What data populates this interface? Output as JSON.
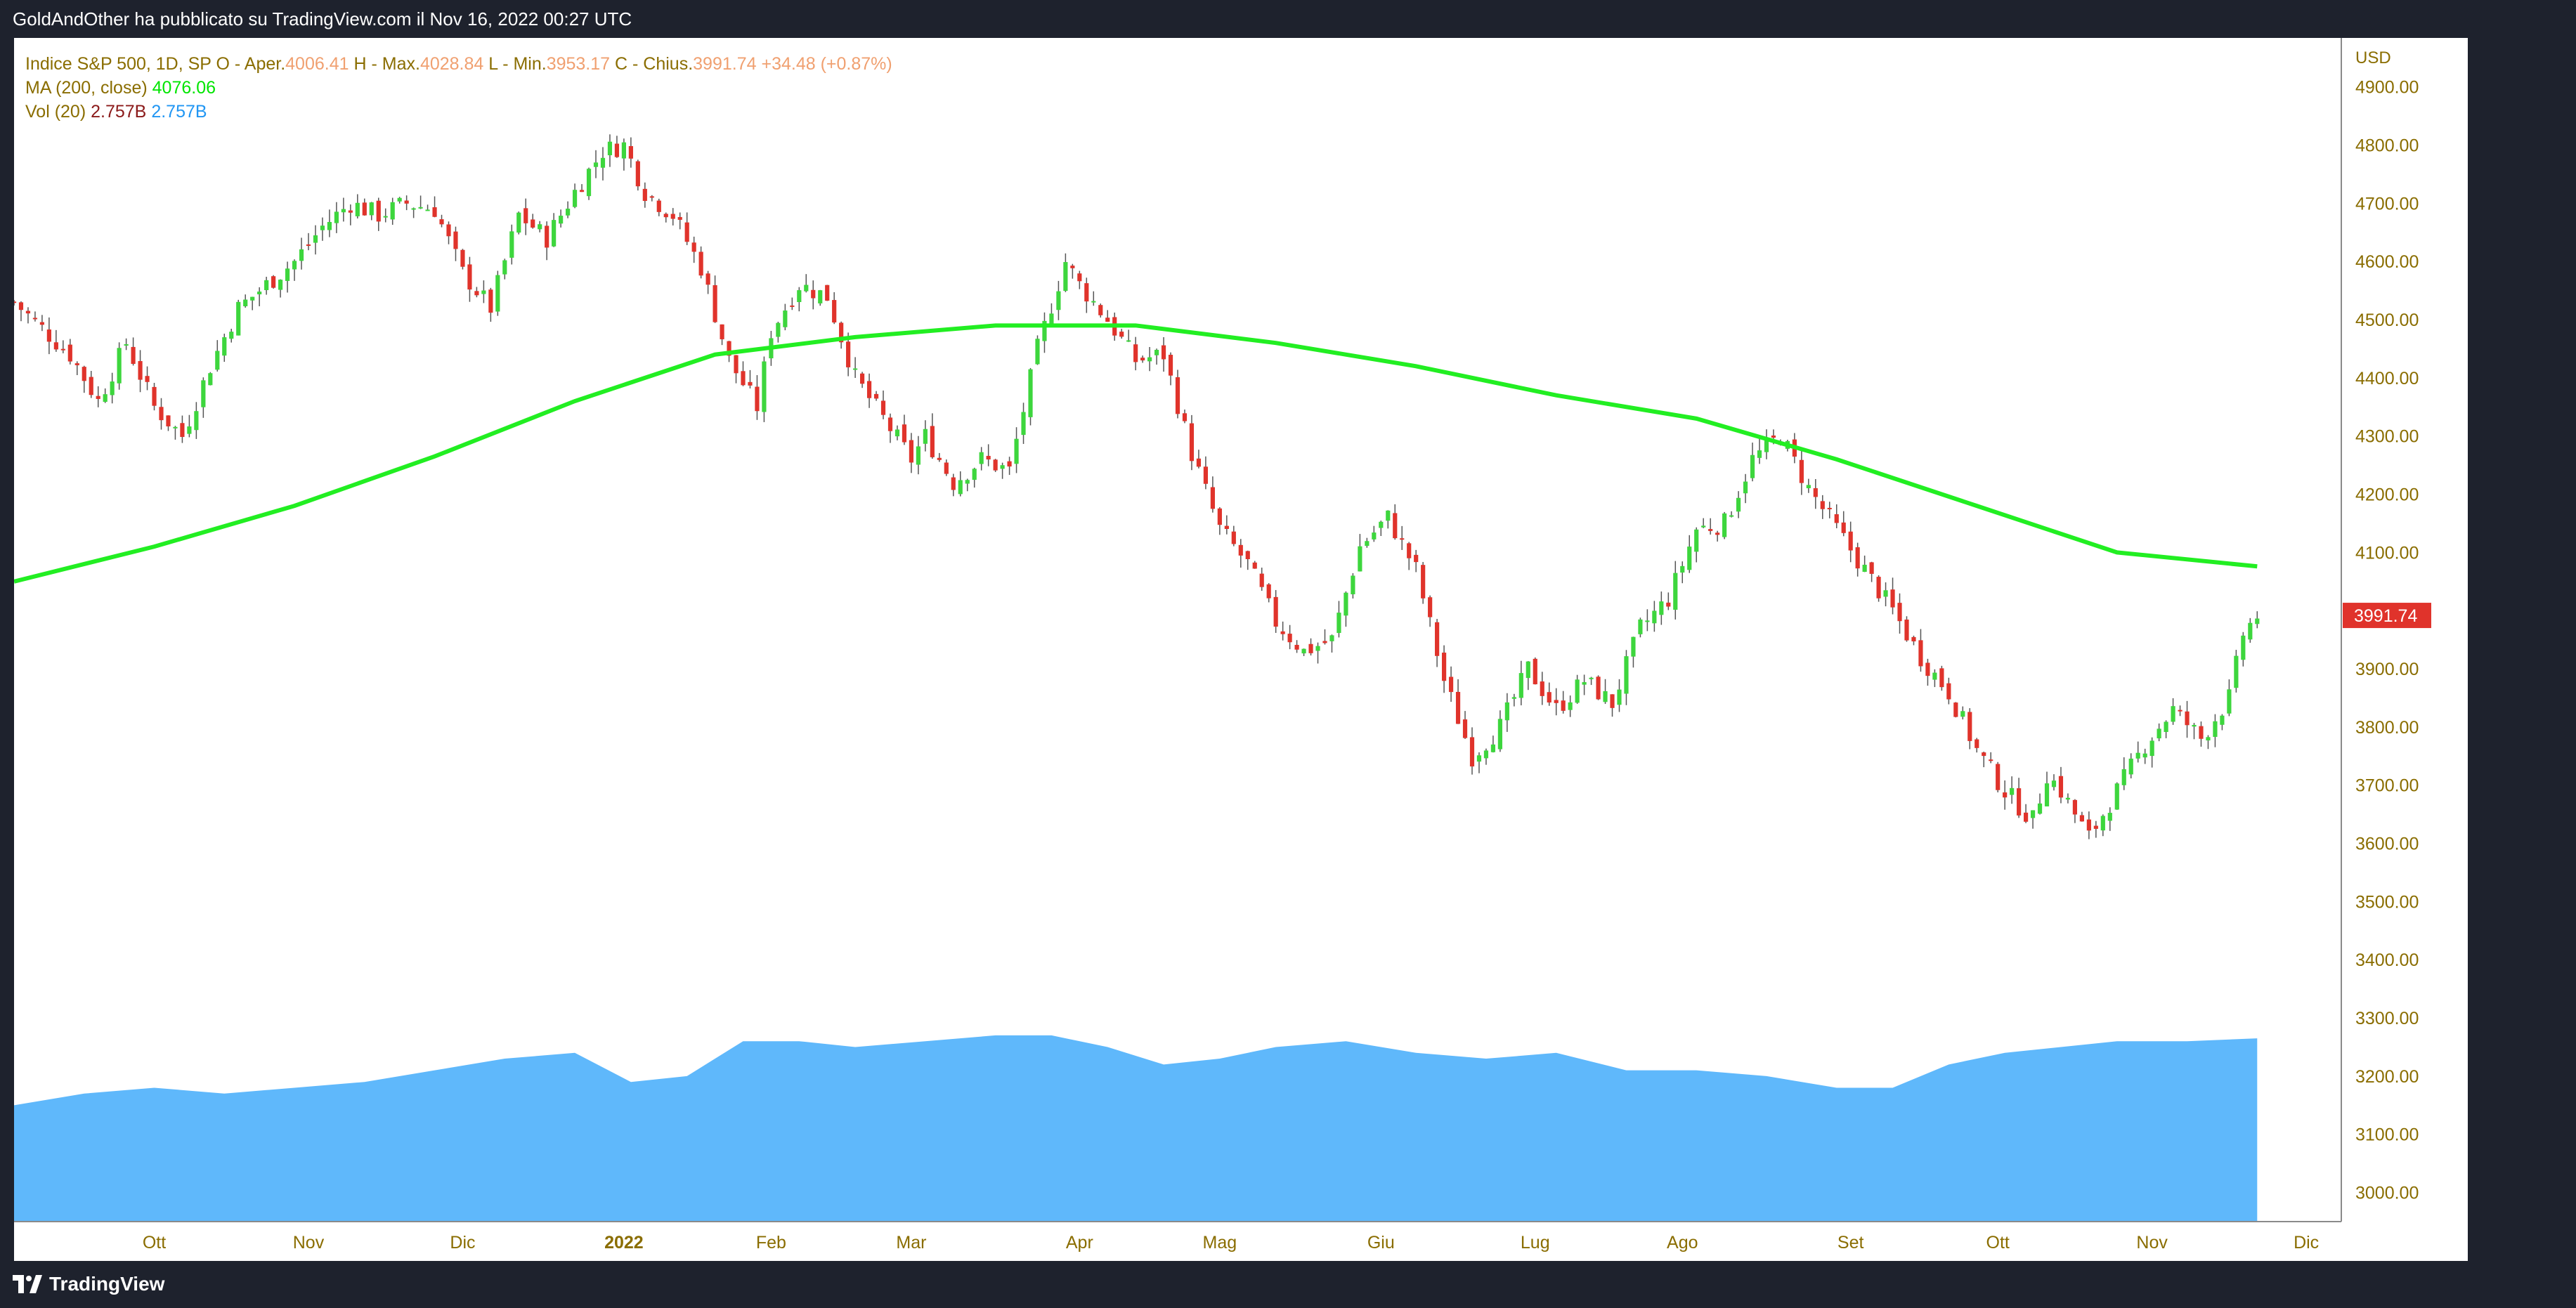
{
  "header": {
    "publish_line": "GoldAndOther ha pubblicato su TradingView.com il Nov 16, 2022 00:27 UTC"
  },
  "legend": {
    "symbol": "Indice S&P 500, 1D, SP",
    "open_label": "O - Aper.",
    "open_value": "4006.41",
    "high_label": "H - Max.",
    "high_value": "4028.84",
    "low_label": "L - Min.",
    "low_value": "3953.17",
    "close_label": "C - Chius.",
    "close_value": "3991.74",
    "change": "+34.48 (+0.87%)",
    "ma_label": "MA (200, close)",
    "ma_value": "4076.06",
    "vol_label": "Vol (20)",
    "vol_value_1": "2.757B",
    "vol_value_2": "2.757B"
  },
  "footer": {
    "brand": "TradingView"
  },
  "colors": {
    "up": "#3dd63d",
    "down": "#e0332b",
    "ma": "#22ee22",
    "volume": "#5fb8fb",
    "price_tag": "#e0332b",
    "axis_text": "#8a6d00"
  },
  "chart_data": {
    "type": "candlestick",
    "currency": "USD",
    "y_ticks": [
      3000,
      3100,
      3200,
      3300,
      3400,
      3500,
      3600,
      3700,
      3800,
      3900,
      4000,
      4100,
      4200,
      4300,
      4400,
      4500,
      4600,
      4700,
      4800,
      4900
    ],
    "ylim": [
      2950,
      4960
    ],
    "last_price_label": "3991.74",
    "x_labels": [
      {
        "text": "Ott",
        "idx": 20,
        "bold": false
      },
      {
        "text": "Nov",
        "idx": 42,
        "bold": false
      },
      {
        "text": "Dic",
        "idx": 64,
        "bold": false
      },
      {
        "text": "2022",
        "idx": 87,
        "bold": true
      },
      {
        "text": "Feb",
        "idx": 108,
        "bold": false
      },
      {
        "text": "Mar",
        "idx": 128,
        "bold": false
      },
      {
        "text": "Apr",
        "idx": 152,
        "bold": false
      },
      {
        "text": "Mag",
        "idx": 172,
        "bold": false
      },
      {
        "text": "Giu",
        "idx": 195,
        "bold": false
      },
      {
        "text": "Lug",
        "idx": 217,
        "bold": false
      },
      {
        "text": "Ago",
        "idx": 238,
        "bold": false
      },
      {
        "text": "Set",
        "idx": 262,
        "bold": false
      },
      {
        "text": "Ott",
        "idx": 283,
        "bold": false
      },
      {
        "text": "Nov",
        "idx": 305,
        "bold": false
      },
      {
        "text": "Dic",
        "idx": 327,
        "bold": false
      }
    ],
    "close_series": [
      [
        0,
        4530
      ],
      [
        8,
        4440
      ],
      [
        12,
        4360
      ],
      [
        16,
        4460
      ],
      [
        20,
        4350
      ],
      [
        24,
        4300
      ],
      [
        28,
        4420
      ],
      [
        32,
        4520
      ],
      [
        36,
        4560
      ],
      [
        40,
        4600
      ],
      [
        44,
        4660
      ],
      [
        48,
        4700
      ],
      [
        52,
        4680
      ],
      [
        56,
        4700
      ],
      [
        60,
        4690
      ],
      [
        64,
        4580
      ],
      [
        68,
        4520
      ],
      [
        72,
        4680
      ],
      [
        76,
        4640
      ],
      [
        80,
        4720
      ],
      [
        84,
        4790
      ],
      [
        87,
        4800
      ],
      [
        90,
        4720
      ],
      [
        94,
        4680
      ],
      [
        98,
        4590
      ],
      [
        102,
        4430
      ],
      [
        106,
        4350
      ],
      [
        108,
        4480
      ],
      [
        112,
        4560
      ],
      [
        116,
        4540
      ],
      [
        120,
        4400
      ],
      [
        124,
        4330
      ],
      [
        128,
        4260
      ],
      [
        130,
        4300
      ],
      [
        134,
        4220
      ],
      [
        138,
        4260
      ],
      [
        142,
        4240
      ],
      [
        146,
        4450
      ],
      [
        150,
        4600
      ],
      [
        152,
        4560
      ],
      [
        156,
        4500
      ],
      [
        160,
        4430
      ],
      [
        164,
        4440
      ],
      [
        168,
        4270
      ],
      [
        172,
        4140
      ],
      [
        176,
        4080
      ],
      [
        180,
        3980
      ],
      [
        184,
        3930
      ],
      [
        188,
        3950
      ],
      [
        192,
        4110
      ],
      [
        196,
        4160
      ],
      [
        200,
        4070
      ],
      [
        204,
        3880
      ],
      [
        208,
        3750
      ],
      [
        212,
        3800
      ],
      [
        216,
        3900
      ],
      [
        220,
        3830
      ],
      [
        224,
        3880
      ],
      [
        228,
        3840
      ],
      [
        232,
        3970
      ],
      [
        236,
        4020
      ],
      [
        240,
        4140
      ],
      [
        244,
        4150
      ],
      [
        248,
        4260
      ],
      [
        252,
        4300
      ],
      [
        256,
        4210
      ],
      [
        260,
        4140
      ],
      [
        264,
        4070
      ],
      [
        268,
        4000
      ],
      [
        272,
        3920
      ],
      [
        276,
        3860
      ],
      [
        280,
        3760
      ],
      [
        284,
        3690
      ],
      [
        288,
        3640
      ],
      [
        290,
        3720
      ],
      [
        292,
        3690
      ],
      [
        296,
        3610
      ],
      [
        300,
        3690
      ],
      [
        304,
        3770
      ],
      [
        308,
        3830
      ],
      [
        312,
        3780
      ],
      [
        316,
        3850
      ],
      [
        318,
        3960
      ],
      [
        320,
        3992
      ]
    ],
    "ma200_series": [
      [
        0,
        4050
      ],
      [
        20,
        4110
      ],
      [
        40,
        4180
      ],
      [
        60,
        4265
      ],
      [
        80,
        4360
      ],
      [
        100,
        4440
      ],
      [
        120,
        4470
      ],
      [
        140,
        4490
      ],
      [
        160,
        4490
      ],
      [
        180,
        4460
      ],
      [
        200,
        4420
      ],
      [
        220,
        4370
      ],
      [
        240,
        4330
      ],
      [
        260,
        4260
      ],
      [
        280,
        4180
      ],
      [
        300,
        4100
      ],
      [
        320,
        4076
      ]
    ],
    "volume_series": [
      [
        0,
        3150
      ],
      [
        10,
        3170
      ],
      [
        20,
        3180
      ],
      [
        30,
        3170
      ],
      [
        40,
        3180
      ],
      [
        50,
        3190
      ],
      [
        60,
        3210
      ],
      [
        70,
        3230
      ],
      [
        80,
        3240
      ],
      [
        88,
        3190
      ],
      [
        96,
        3200
      ],
      [
        104,
        3260
      ],
      [
        112,
        3260
      ],
      [
        120,
        3250
      ],
      [
        130,
        3260
      ],
      [
        140,
        3270
      ],
      [
        148,
        3270
      ],
      [
        156,
        3250
      ],
      [
        164,
        3220
      ],
      [
        172,
        3230
      ],
      [
        180,
        3250
      ],
      [
        190,
        3260
      ],
      [
        200,
        3240
      ],
      [
        210,
        3230
      ],
      [
        220,
        3240
      ],
      [
        230,
        3210
      ],
      [
        240,
        3210
      ],
      [
        250,
        3200
      ],
      [
        260,
        3180
      ],
      [
        268,
        3180
      ],
      [
        276,
        3220
      ],
      [
        284,
        3240
      ],
      [
        292,
        3250
      ],
      [
        300,
        3260
      ],
      [
        310,
        3260
      ],
      [
        320,
        3265
      ]
    ],
    "index_range": [
      0,
      332
    ]
  }
}
